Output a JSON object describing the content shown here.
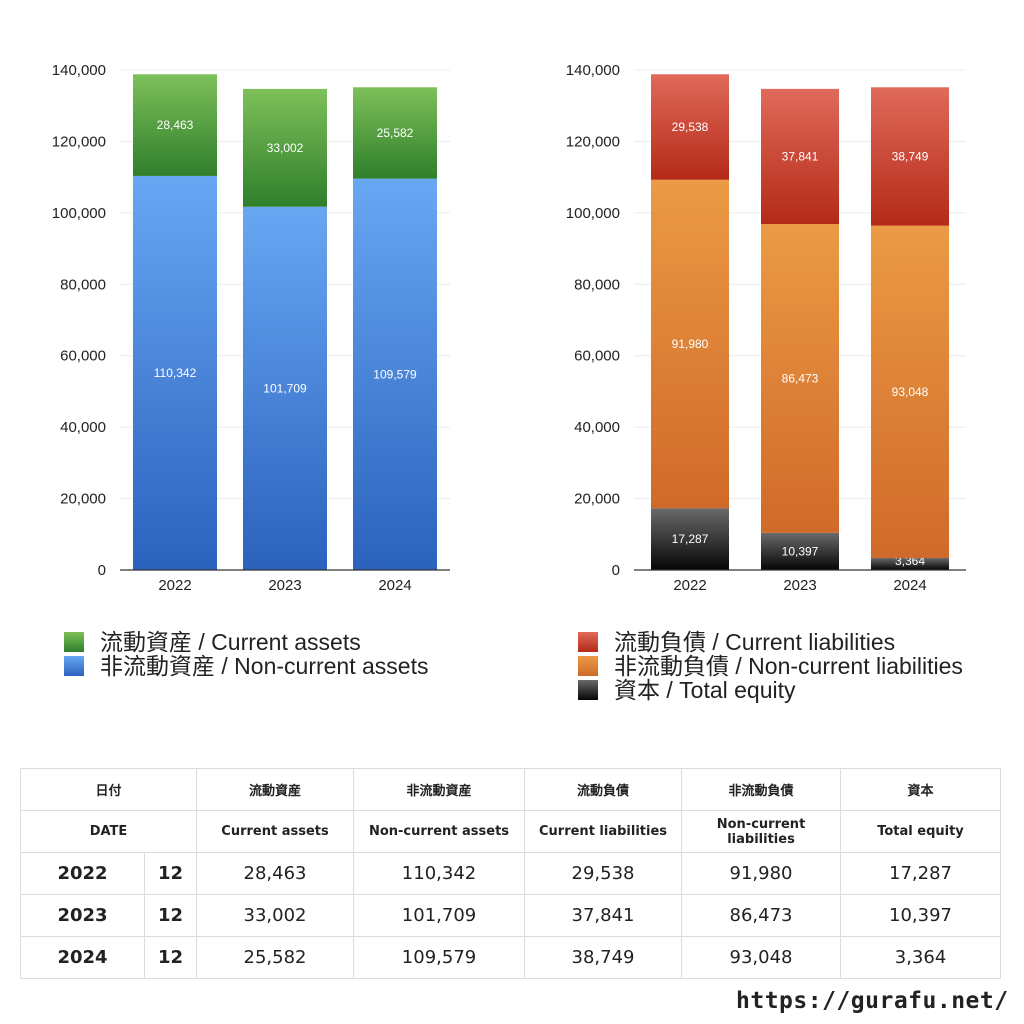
{
  "chart_data": [
    {
      "type": "bar",
      "stacked": true,
      "categories": [
        "2022",
        "2023",
        "2024"
      ],
      "ylim": [
        0,
        140000
      ],
      "yticks": [
        "0",
        "20,000",
        "40,000",
        "60,000",
        "80,000",
        "100,000",
        "120,000",
        "140,000"
      ],
      "grid": true,
      "series": [
        {
          "name": "非流動資産 / Non-current assets",
          "values": [
            110342,
            101709,
            109579
          ],
          "labels": [
            "110,342",
            "101,709",
            "109,579"
          ],
          "color": "#3b7fd9"
        },
        {
          "name": "流動資産 / Current assets",
          "values": [
            28463,
            33002,
            25582
          ],
          "labels": [
            "28,463",
            "33,002",
            "25,582"
          ],
          "color": "#4c9a3c"
        }
      ]
    },
    {
      "type": "bar",
      "stacked": true,
      "categories": [
        "2022",
        "2023",
        "2024"
      ],
      "ylim": [
        0,
        140000
      ],
      "yticks": [
        "0",
        "20,000",
        "40,000",
        "60,000",
        "80,000",
        "100,000",
        "120,000",
        "140,000"
      ],
      "grid": true,
      "series": [
        {
          "name": "資本 / Total equity",
          "values": [
            17287,
            10397,
            3364
          ],
          "labels": [
            "17,287",
            "10,397",
            "3,364"
          ],
          "color": "#333333"
        },
        {
          "name": "非流動負債 / Non-current liabilities",
          "values": [
            91980,
            86473,
            93048
          ],
          "labels": [
            "91,980",
            "86,473",
            "93,048"
          ],
          "color": "#e08a35"
        },
        {
          "name": "流動負債 / Current liabilities",
          "values": [
            29538,
            37841,
            38749
          ],
          "labels": [
            "29,538",
            "37,841",
            "38,749"
          ],
          "color": "#cc4a35"
        }
      ]
    }
  ],
  "legend_left": [
    {
      "label": "流動資産 / Current assets",
      "color": "#4c9a3c"
    },
    {
      "label": "非流動資産 / Non-current assets",
      "color": "#3b7fd9"
    }
  ],
  "legend_right": [
    {
      "label": "流動負債 / Current liabilities",
      "color": "#cc4a35"
    },
    {
      "label": "非流動負債 / Non-current liabilities",
      "color": "#e08a35"
    },
    {
      "label": "資本 / Total equity",
      "color": "#333333"
    }
  ],
  "table": {
    "header_jp": [
      "日付",
      "流動資産",
      "非流動資産",
      "流動負債",
      "非流動負債",
      "資本"
    ],
    "header_en": [
      "DATE",
      "Current assets",
      "Non-current assets",
      "Current liabilities",
      "Non-current liabilities",
      "Total equity"
    ],
    "rows": [
      {
        "year": "2022",
        "month": "12",
        "values": [
          "28,463",
          "110,342",
          "29,538",
          "91,980",
          "17,287"
        ]
      },
      {
        "year": "2023",
        "month": "12",
        "values": [
          "33,002",
          "101,709",
          "37,841",
          "86,473",
          "10,397"
        ]
      },
      {
        "year": "2024",
        "month": "12",
        "values": [
          "25,582",
          "109,579",
          "38,749",
          "93,048",
          "3,364"
        ]
      }
    ]
  },
  "footer": {
    "url": "https://gurafu.net/"
  }
}
